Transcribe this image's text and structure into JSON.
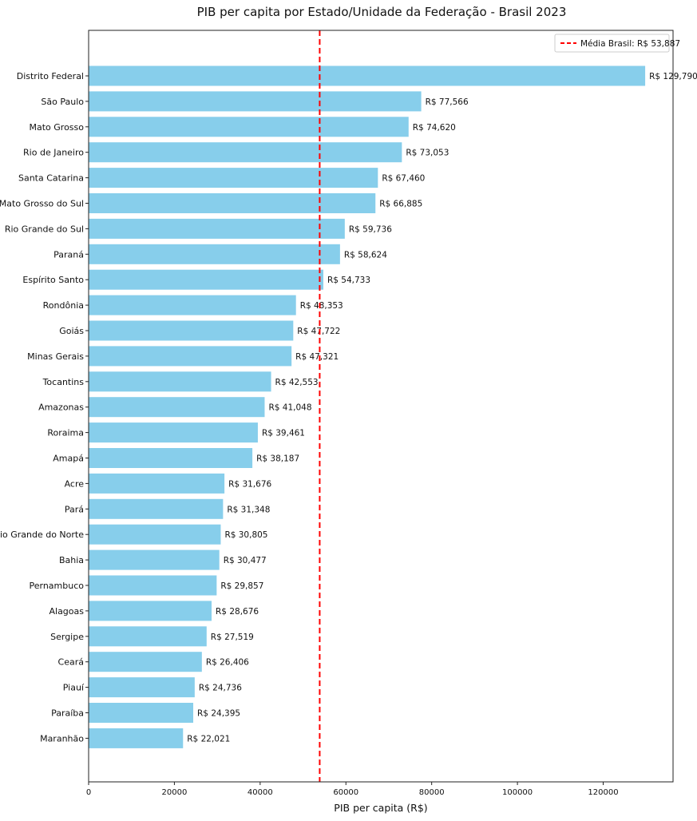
{
  "chart_data": {
    "type": "bar",
    "orientation": "horizontal",
    "title": "PIB per capita por Estado/Unidade da Federação - Brasil 2023",
    "xlabel": "PIB per capita (R$)",
    "ylabel": "",
    "xlim": [
      0,
      136289.5
    ],
    "xticks": [
      0,
      20000,
      40000,
      60000,
      80000,
      100000,
      120000
    ],
    "xtick_labels": [
      "0",
      "20000",
      "40000",
      "60000",
      "80000",
      "100000",
      "120000"
    ],
    "grid": false,
    "bar_color": "#87CEEB",
    "categories": [
      "Distrito Federal",
      "São Paulo",
      "Mato Grosso",
      "Rio de Janeiro",
      "Santa Catarina",
      "Mato Grosso do Sul",
      "Rio Grande do Sul",
      "Paraná",
      "Espírito Santo",
      "Rondônia",
      "Goiás",
      "Minas Gerais",
      "Tocantins",
      "Amazonas",
      "Roraima",
      "Amapá",
      "Acre",
      "Pará",
      "Rio Grande do Norte",
      "Bahia",
      "Pernambuco",
      "Alagoas",
      "Sergipe",
      "Ceará",
      "Piauí",
      "Paraíba",
      "Maranhão"
    ],
    "values": [
      129790,
      77566,
      74620,
      73053,
      67460,
      66885,
      59736,
      58624,
      54733,
      48353,
      47722,
      47321,
      42553,
      41048,
      39461,
      38187,
      31676,
      31348,
      30805,
      30477,
      29857,
      28676,
      27519,
      26406,
      24736,
      24395,
      22021
    ],
    "value_labels": [
      "R$ 129,790",
      "R$ 77,566",
      "R$ 74,620",
      "R$ 73,053",
      "R$ 67,460",
      "R$ 66,885",
      "R$ 59,736",
      "R$ 58,624",
      "R$ 54,733",
      "R$ 48,353",
      "R$ 47,722",
      "R$ 47,321",
      "R$ 42,553",
      "R$ 41,048",
      "R$ 39,461",
      "R$ 38,187",
      "R$ 31,676",
      "R$ 31,348",
      "R$ 30,805",
      "R$ 30,477",
      "R$ 29,857",
      "R$ 28,676",
      "R$ 27,519",
      "R$ 26,406",
      "R$ 24,736",
      "R$ 24,395",
      "R$ 22,021"
    ],
    "reference_line": {
      "value": 53887,
      "color": "#FF0000",
      "style": "dashed",
      "label": "Média Brasil: R$ 53,887"
    },
    "legend_position": "top-right"
  }
}
